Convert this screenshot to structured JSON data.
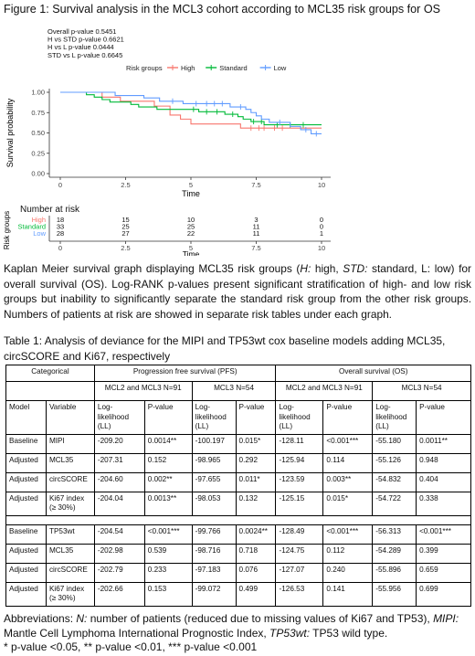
{
  "figure_title": "Figure 1: Survival analysis in the MCL3 cohort according to MCL35 risk groups for OS",
  "pvalues": [
    "Overall p-value 0.5451",
    "H vs STD p-value 0.6621",
    "H vs L p-value 0.0444",
    "STD vs L p-value 0.6645"
  ],
  "chart_data": {
    "type": "line",
    "title": "",
    "xlabel": "Time",
    "ylabel": "Survival probability",
    "xlim": [
      0,
      10
    ],
    "ylim": [
      0,
      1
    ],
    "x_ticks": [
      "0",
      "2.5",
      "5",
      "7.5",
      "10"
    ],
    "y_ticks": [
      "0.00",
      "0.25",
      "0.50",
      "0.75",
      "1.00"
    ],
    "legend_title": "Risk groups",
    "legend_position": "top",
    "series": [
      {
        "name": "High",
        "color": "#f8766d",
        "steps": [
          [
            0,
            1.0
          ],
          [
            1.4,
            1.0
          ],
          [
            1.6,
            0.94
          ],
          [
            2.3,
            0.89
          ],
          [
            3.6,
            0.83
          ],
          [
            4.2,
            0.72
          ],
          [
            4.6,
            0.67
          ],
          [
            5.0,
            0.61
          ],
          [
            6.9,
            0.56
          ],
          [
            10,
            0.56
          ]
        ],
        "censors": [
          [
            7.3,
            0.56
          ],
          [
            7.6,
            0.56
          ],
          [
            7.8,
            0.56
          ],
          [
            8.2,
            0.56
          ],
          [
            8.5,
            0.56
          ]
        ]
      },
      {
        "name": "Standard",
        "color": "#00ba38",
        "steps": [
          [
            0,
            1.0
          ],
          [
            0.9,
            1.0
          ],
          [
            1.0,
            0.97
          ],
          [
            1.3,
            0.94
          ],
          [
            1.6,
            0.91
          ],
          [
            1.9,
            0.88
          ],
          [
            2.7,
            0.85
          ],
          [
            3.0,
            0.82
          ],
          [
            3.7,
            0.79
          ],
          [
            5.3,
            0.76
          ],
          [
            6.3,
            0.73
          ],
          [
            6.8,
            0.7
          ],
          [
            7.0,
            0.67
          ],
          [
            7.3,
            0.64
          ],
          [
            7.8,
            0.6
          ],
          [
            10,
            0.6
          ]
        ],
        "censors": [
          [
            5.1,
            0.79
          ],
          [
            5.6,
            0.76
          ],
          [
            6.0,
            0.76
          ],
          [
            6.6,
            0.73
          ],
          [
            7.4,
            0.64
          ],
          [
            7.7,
            0.64
          ],
          [
            8.3,
            0.6
          ],
          [
            8.8,
            0.6
          ],
          [
            9.3,
            0.6
          ]
        ]
      },
      {
        "name": "Low",
        "color": "#619cff",
        "steps": [
          [
            0,
            1.0
          ],
          [
            2.0,
            1.0
          ],
          [
            2.1,
            0.96
          ],
          [
            3.1,
            0.96
          ],
          [
            3.2,
            0.93
          ],
          [
            3.8,
            0.89
          ],
          [
            4.7,
            0.86
          ],
          [
            6.5,
            0.82
          ],
          [
            7.1,
            0.79
          ],
          [
            7.3,
            0.75
          ],
          [
            7.5,
            0.71
          ],
          [
            7.7,
            0.67
          ],
          [
            8.0,
            0.63
          ],
          [
            8.8,
            0.58
          ],
          [
            9.2,
            0.54
          ],
          [
            9.6,
            0.49
          ],
          [
            10,
            0.49
          ]
        ],
        "censors": [
          [
            4.3,
            0.89
          ],
          [
            5.2,
            0.86
          ],
          [
            5.6,
            0.86
          ],
          [
            5.9,
            0.86
          ],
          [
            6.2,
            0.86
          ],
          [
            6.9,
            0.82
          ],
          [
            8.4,
            0.63
          ],
          [
            9.4,
            0.54
          ],
          [
            9.8,
            0.49
          ]
        ]
      }
    ]
  },
  "risk_table": {
    "title": "Number at risk",
    "ylabel": "Risk groups",
    "xlabel": "Time",
    "times": [
      "0",
      "2.5",
      "5",
      "7.5",
      "10"
    ],
    "rows": [
      {
        "label": "High",
        "color": "#f8766d",
        "values": [
          "18",
          "15",
          "10",
          "3",
          "0"
        ]
      },
      {
        "label": "Standard",
        "color": "#00ba38",
        "values": [
          "33",
          "25",
          "25",
          "11",
          "0"
        ]
      },
      {
        "label": "Low",
        "color": "#619cff",
        "values": [
          "28",
          "27",
          "22",
          "11",
          "1"
        ]
      }
    ]
  },
  "caption": {
    "p1": "Kaplan Meier survival graph displaying MCL35 risk groups (",
    "h": "H:",
    "p2": " high, ",
    "std": "STD:",
    "p3": " standard, L: low) for overall survival (OS). Log-RANK p-values present significant stratification of high- and low risk groups but inability to significantly separate the standard risk group from the other risk groups. Numbers of patients at risk are showed in separate risk tables under each graph."
  },
  "table_title": "Table 1: Analysis of deviance for the MIPI and TP53wt cox baseline models adding MCL35, circSCORE and Ki67, respectively",
  "table": {
    "categorical": "Categorical",
    "pfs": "Progression free survival (PFS)",
    "os": "Overall survival (OS)",
    "cohort_a": "MCL2 and MCL3 N=91",
    "cohort_b": "MCL3 N=54",
    "cohort_c": "MCL2 and MCL3 N=91",
    "cohort_d": "MCL3 N=54",
    "col_model": "Model",
    "col_variable": "Variable",
    "col_ll": "Log-likelihood (LL)",
    "col_p": "P-value",
    "rows": [
      [
        "Baseline",
        "MIPI",
        "-209.20",
        "0.0014**",
        "-100.197",
        "0.015*",
        "-128.11",
        "<0.001***",
        "-55.180",
        "0.0011**"
      ],
      [
        "Adjusted",
        "MCL35",
        "-207.31",
        "0.152",
        "-98.965",
        "0.292",
        "-125.94",
        "0.114",
        "-55.126",
        "0.948"
      ],
      [
        "Adjusted",
        "circSCORE",
        "-204.60",
        "0.002**",
        "-97.655",
        "0.011*",
        "-123.59",
        "0.003**",
        "-54.832",
        "0.404"
      ],
      [
        "Adjusted",
        "Ki67 index (≥ 30%)",
        "-204.04",
        "0.0013**",
        "-98.053",
        "0.132",
        "-125.15",
        "0.015*",
        "-54.722",
        "0.338"
      ],
      [
        "Baseline",
        "TP53wt",
        "-204.54",
        "<0.001***",
        "-99.766",
        "0.0024**",
        "-128.49",
        "<0.001***",
        "-56.313",
        "<0.001***"
      ],
      [
        "Adjusted",
        "MCL35",
        "-202.98",
        "0.539",
        "-98.716",
        "0.718",
        "-124.75",
        "0.112",
        "-54.289",
        "0.399"
      ],
      [
        "Adjusted",
        "circSCORE",
        "-202.79",
        "0.233",
        "-97.183",
        "0.076",
        "-127.07",
        "0.240",
        "-55.896",
        "0.659"
      ],
      [
        "Adjusted",
        "Ki67 index (≥ 30%)",
        "-202.66",
        "0.153",
        "-99.072",
        "0.499",
        "-126.53",
        "0.141",
        "-55.956",
        "0.699"
      ]
    ]
  },
  "abbreviations": {
    "lead": "Abbreviations: ",
    "n": "N:",
    "n_text": " number of patients (reduced due to missing values of Ki67 and TP53), ",
    "mipi": "MIPI:",
    "mipi_text": " Mantle Cell Lymphoma International Prognostic Index, ",
    "tp53": "TP53wt:",
    "tp53_text": " TP53 wild type.",
    "sig": "* p-value <0.05, ** p-value <0.01, *** p-value <0.001"
  }
}
